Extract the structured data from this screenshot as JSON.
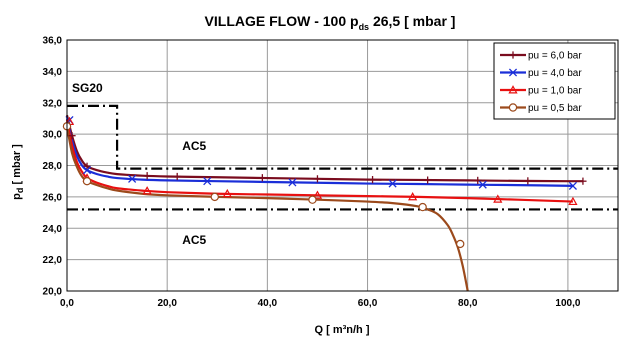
{
  "chart_data": {
    "type": "line",
    "title": "VILLAGE FLOW - 100  p",
    "title_sub": "ds",
    "title_rest": " 26,5 [ mbar ]",
    "xlabel": "Q [ m³n/h ]",
    "ylabel": "p",
    "ylabel_sub": "d",
    "ylabel_rest": " [ mbar ]",
    "xlim": [
      0,
      110
    ],
    "ylim": [
      20,
      36
    ],
    "x_ticks": [
      {
        "value": 0,
        "label": "0,0"
      },
      {
        "value": 20,
        "label": "20,0"
      },
      {
        "value": 40,
        "label": "40,0"
      },
      {
        "value": 60,
        "label": "60,0"
      },
      {
        "value": 80,
        "label": "80,0"
      },
      {
        "value": 100,
        "label": "100,0"
      }
    ],
    "y_ticks": [
      {
        "value": 20,
        "label": "20,0"
      },
      {
        "value": 22,
        "label": "22,0"
      },
      {
        "value": 24,
        "label": "24,0"
      },
      {
        "value": 26,
        "label": "26,0"
      },
      {
        "value": 28,
        "label": "28,0"
      },
      {
        "value": 30,
        "label": "30,0"
      },
      {
        "value": 32,
        "label": "32,0"
      },
      {
        "value": 34,
        "label": "34,0"
      },
      {
        "value": 36,
        "label": "36,0"
      }
    ],
    "grid": true,
    "legend_position": "top-right",
    "series": [
      {
        "name": "pu = 6,0 bar",
        "color": "#7a0c1e",
        "marker": "plus",
        "x": [
          0,
          1,
          2,
          3,
          4,
          6,
          8,
          10,
          15,
          20,
          30,
          40,
          50,
          60,
          70,
          80,
          90,
          100,
          103
        ],
        "y": [
          31.2,
          29.9,
          28.9,
          28.3,
          27.95,
          27.7,
          27.55,
          27.45,
          27.35,
          27.3,
          27.25,
          27.2,
          27.15,
          27.1,
          27.08,
          27.05,
          27.02,
          27.0,
          27.0
        ],
        "marker_x": [
          1,
          4,
          16,
          22,
          39,
          50,
          61,
          72,
          82,
          92,
          103
        ],
        "marker_y": [
          29.9,
          27.95,
          27.35,
          27.3,
          27.22,
          27.15,
          27.1,
          27.07,
          27.05,
          27.02,
          27.0
        ]
      },
      {
        "name": "pu = 4,0 bar",
        "color": "#1a2ed8",
        "marker": "x",
        "x": [
          0,
          1,
          2,
          3,
          4,
          6,
          8,
          10,
          15,
          20,
          30,
          40,
          50,
          60,
          70,
          80,
          90,
          101
        ],
        "y": [
          31.0,
          29.6,
          28.6,
          28.0,
          27.7,
          27.45,
          27.3,
          27.2,
          27.1,
          27.05,
          27.0,
          26.95,
          26.9,
          26.85,
          26.82,
          26.78,
          26.75,
          26.7
        ],
        "marker_x": [
          0.5,
          4,
          13,
          28,
          45,
          65,
          83,
          101
        ],
        "marker_y": [
          30.9,
          27.7,
          27.15,
          27.0,
          26.92,
          26.85,
          26.78,
          26.7
        ]
      },
      {
        "name": "pu = 1,0 bar",
        "color": "#e81010",
        "marker": "triangle",
        "x": [
          0,
          1,
          2,
          3,
          4,
          6,
          8,
          10,
          15,
          20,
          30,
          40,
          50,
          60,
          70,
          80,
          90,
          101
        ],
        "y": [
          30.9,
          29.3,
          28.2,
          27.6,
          27.2,
          26.9,
          26.7,
          26.55,
          26.4,
          26.3,
          26.2,
          26.15,
          26.1,
          26.05,
          26.0,
          25.92,
          25.82,
          25.7
        ],
        "marker_x": [
          0.5,
          4,
          16,
          32,
          50,
          69,
          86,
          101
        ],
        "marker_y": [
          30.8,
          27.2,
          26.38,
          26.2,
          26.1,
          26.0,
          25.85,
          25.7
        ]
      },
      {
        "name": "pu = 0,5 bar",
        "color": "#9c4a1c",
        "marker": "circle",
        "x": [
          0,
          1,
          2,
          3,
          4,
          6,
          8,
          10,
          15,
          20,
          30,
          40,
          50,
          60,
          65,
          70,
          72,
          74,
          76,
          77,
          78,
          79,
          80
        ],
        "y": [
          30.5,
          28.8,
          27.9,
          27.3,
          27.0,
          26.75,
          26.55,
          26.4,
          26.2,
          26.1,
          26.0,
          25.92,
          25.82,
          25.7,
          25.6,
          25.4,
          25.2,
          24.9,
          24.2,
          23.6,
          22.8,
          21.6,
          20.0
        ],
        "marker_x": [
          0,
          4,
          29.5,
          49,
          71,
          78.5
        ],
        "marker_y": [
          30.5,
          27.0,
          26.0,
          25.82,
          25.35,
          23.0
        ]
      }
    ],
    "zones": [
      {
        "label": "SG20",
        "label_x": 1,
        "label_y": 32.7,
        "points": [
          [
            0,
            31.8
          ],
          [
            10,
            31.8
          ],
          [
            10,
            27.8
          ],
          [
            110,
            27.8
          ]
        ]
      },
      {
        "label": "AC5",
        "label_x": 23,
        "label_y": 29.0,
        "points": []
      },
      {
        "label": "AC5",
        "label_x": 23,
        "label_y": 23.0,
        "points": [
          [
            0,
            25.2
          ],
          [
            110,
            25.2
          ]
        ]
      }
    ]
  }
}
